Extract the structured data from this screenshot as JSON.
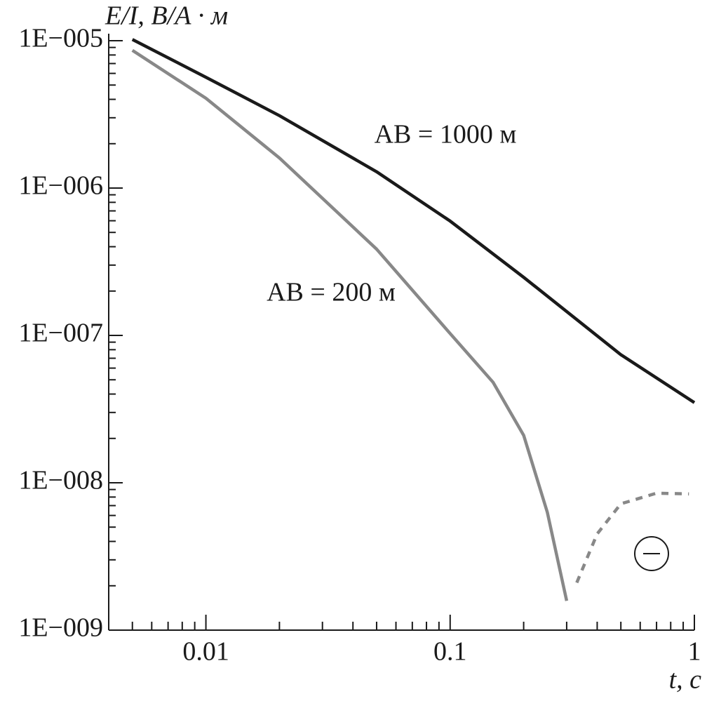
{
  "chart_data": {
    "type": "line",
    "ylabel": "E/I, В/А · м",
    "xlabel": "t, с",
    "xscale": "log",
    "yscale": "log",
    "xlim": [
      0.004,
      1
    ],
    "ylim": [
      1e-09,
      1e-05
    ],
    "xticks": [
      0.01,
      0.1,
      1
    ],
    "yticks": [
      {
        "value": 1e-09,
        "label": "1E−009"
      },
      {
        "value": 1e-08,
        "label": "1E−008"
      },
      {
        "value": 1e-07,
        "label": "1E−007"
      },
      {
        "value": 1e-06,
        "label": "1E−006"
      },
      {
        "value": 1e-05,
        "label": "1E−005"
      }
    ],
    "series": [
      {
        "name": "AB = 1000 м",
        "color": "#1a1a1a",
        "dashed": false,
        "x": [
          0.005,
          0.01,
          0.02,
          0.05,
          0.1,
          0.2,
          0.5,
          1
        ],
        "values": [
          1.02e-05,
          5.65e-06,
          3.1e-06,
          1.29e-06,
          5.97e-07,
          2.48e-07,
          7.4e-08,
          3.5e-08
        ]
      },
      {
        "name": "AB = 200 м",
        "color": "#888888",
        "dashed": false,
        "x": [
          0.005,
          0.01,
          0.02,
          0.05,
          0.1,
          0.15,
          0.2,
          0.25,
          0.3
        ],
        "values": [
          8.6e-06,
          4.07e-06,
          1.6e-06,
          3.85e-07,
          1.03e-07,
          4.8e-08,
          2.1e-08,
          6.3e-09,
          1.58e-09
        ]
      },
      {
        "color": "#888888",
        "dashed": true,
        "x": [
          0.33,
          0.4,
          0.5,
          0.7,
          0.95
        ],
        "values": [
          2.1e-09,
          4.5e-09,
          7.2e-09,
          8.5e-09,
          8.4e-09
        ]
      }
    ]
  }
}
